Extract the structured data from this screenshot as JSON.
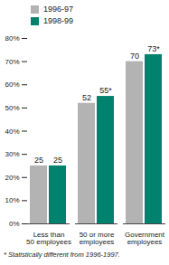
{
  "chart_data": {
    "type": "bar",
    "categories": [
      "Less than\n50 employees",
      "50 or more\nemployees",
      "Government\nemployees"
    ],
    "series": [
      {
        "name": "1996-97",
        "color": "#b3b3b3",
        "values": [
          25,
          52,
          70
        ],
        "value_labels": [
          "25",
          "52",
          "70"
        ]
      },
      {
        "name": "1998-99",
        "color": "#00826e",
        "values": [
          25,
          55,
          73
        ],
        "value_labels": [
          "25",
          "55*",
          "73*"
        ]
      }
    ],
    "ylim": [
      0,
      80
    ],
    "yticks": [
      {
        "value": 0,
        "label": "0%"
      },
      {
        "value": 10,
        "label": "10%"
      },
      {
        "value": 20,
        "label": "20%"
      },
      {
        "value": 30,
        "label": "30%"
      },
      {
        "value": 40,
        "label": "40%"
      },
      {
        "value": 50,
        "label": "50%"
      },
      {
        "value": 60,
        "label": "60%"
      },
      {
        "value": 70,
        "label": "70%"
      },
      {
        "value": 80,
        "label": "80%"
      }
    ],
    "data_labels": true,
    "legend": "top-left",
    "annotations": [
      "* Statistically different from 1996-1997."
    ]
  }
}
